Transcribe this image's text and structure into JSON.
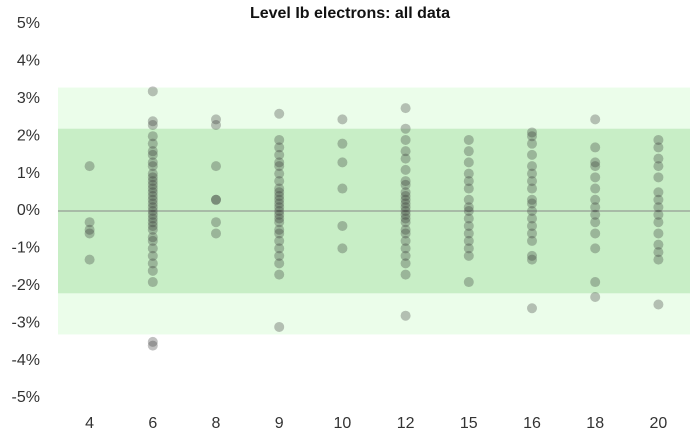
{
  "chart_data": {
    "type": "strip",
    "title": "Level Ib electrons: all data",
    "categories": [
      "4",
      "6",
      "8",
      "9",
      "10",
      "12",
      "15",
      "16",
      "18",
      "20"
    ],
    "values": [
      [
        1.2,
        -0.3,
        -0.5,
        -0.6,
        -1.3
      ],
      [
        3.2,
        2.4,
        2.3,
        2.0,
        1.8,
        1.6,
        1.5,
        1.3,
        1.2,
        1.0,
        0.9,
        0.8,
        0.7,
        0.6,
        0.5,
        0.4,
        0.3,
        0.2,
        0.1,
        0.0,
        -0.1,
        -0.2,
        -0.3,
        -0.4,
        -0.5,
        -0.7,
        -0.8,
        -1.0,
        -1.2,
        -1.4,
        -1.6,
        -1.9,
        -3.5,
        -3.6
      ],
      [
        2.45,
        2.3,
        1.2,
        0.3,
        0.3,
        -0.3,
        -0.6
      ],
      [
        2.6,
        1.9,
        1.7,
        1.5,
        1.3,
        1.2,
        1.0,
        0.8,
        0.6,
        0.5,
        0.4,
        0.3,
        0.2,
        0.1,
        0.0,
        -0.1,
        -0.2,
        -0.3,
        -0.5,
        -0.6,
        -0.8,
        -1.0,
        -1.2,
        -1.4,
        -1.7,
        -3.1
      ],
      [
        2.45,
        1.8,
        1.3,
        0.6,
        -0.4,
        -1.0
      ],
      [
        2.75,
        2.2,
        1.9,
        1.6,
        1.4,
        1.1,
        0.8,
        0.7,
        0.5,
        0.4,
        0.3,
        0.2,
        0.1,
        0.0,
        -0.1,
        -0.2,
        -0.3,
        -0.5,
        -0.6,
        -0.8,
        -1.0,
        -1.2,
        -1.4,
        -1.7,
        -2.8
      ],
      [
        1.9,
        1.6,
        1.3,
        1.0,
        0.8,
        0.6,
        0.3,
        0.1,
        0.0,
        -0.2,
        -0.4,
        -0.6,
        -0.8,
        -1.0,
        -1.2,
        -1.9
      ],
      [
        2.1,
        2.0,
        1.8,
        1.5,
        1.2,
        1.0,
        0.8,
        0.6,
        0.3,
        0.2,
        0.0,
        -0.2,
        -0.4,
        -0.6,
        -0.8,
        -1.2,
        -1.3,
        -2.6
      ],
      [
        2.45,
        1.7,
        1.3,
        1.2,
        0.9,
        0.6,
        0.3,
        0.1,
        -0.1,
        -0.3,
        -0.6,
        -1.0,
        -1.9,
        -2.3
      ],
      [
        1.9,
        1.7,
        1.4,
        1.2,
        0.9,
        0.5,
        0.3,
        0.1,
        -0.1,
        -0.3,
        -0.6,
        -0.9,
        -1.1,
        -1.3,
        -2.5
      ]
    ],
    "color": "#333333",
    "bands": [
      {
        "from": -3.3,
        "to": 3.3,
        "color": "#ebfdea"
      },
      {
        "from": -2.2,
        "to": 2.2,
        "color": "#c8eec6"
      }
    ],
    "ylim": [
      -5,
      5
    ],
    "yticks": [
      {
        "value": -5,
        "label": "-5%"
      },
      {
        "value": -4,
        "label": "-4%"
      },
      {
        "value": -3,
        "label": "-3%"
      },
      {
        "value": -2,
        "label": "-2%"
      },
      {
        "value": -1,
        "label": "-1%"
      },
      {
        "value": 0,
        "label": "0%"
      },
      {
        "value": 1,
        "label": "1%"
      },
      {
        "value": 2,
        "label": "2%"
      },
      {
        "value": 3,
        "label": "3%"
      },
      {
        "value": 4,
        "label": "4%"
      },
      {
        "value": 5,
        "label": "5%"
      }
    ]
  }
}
